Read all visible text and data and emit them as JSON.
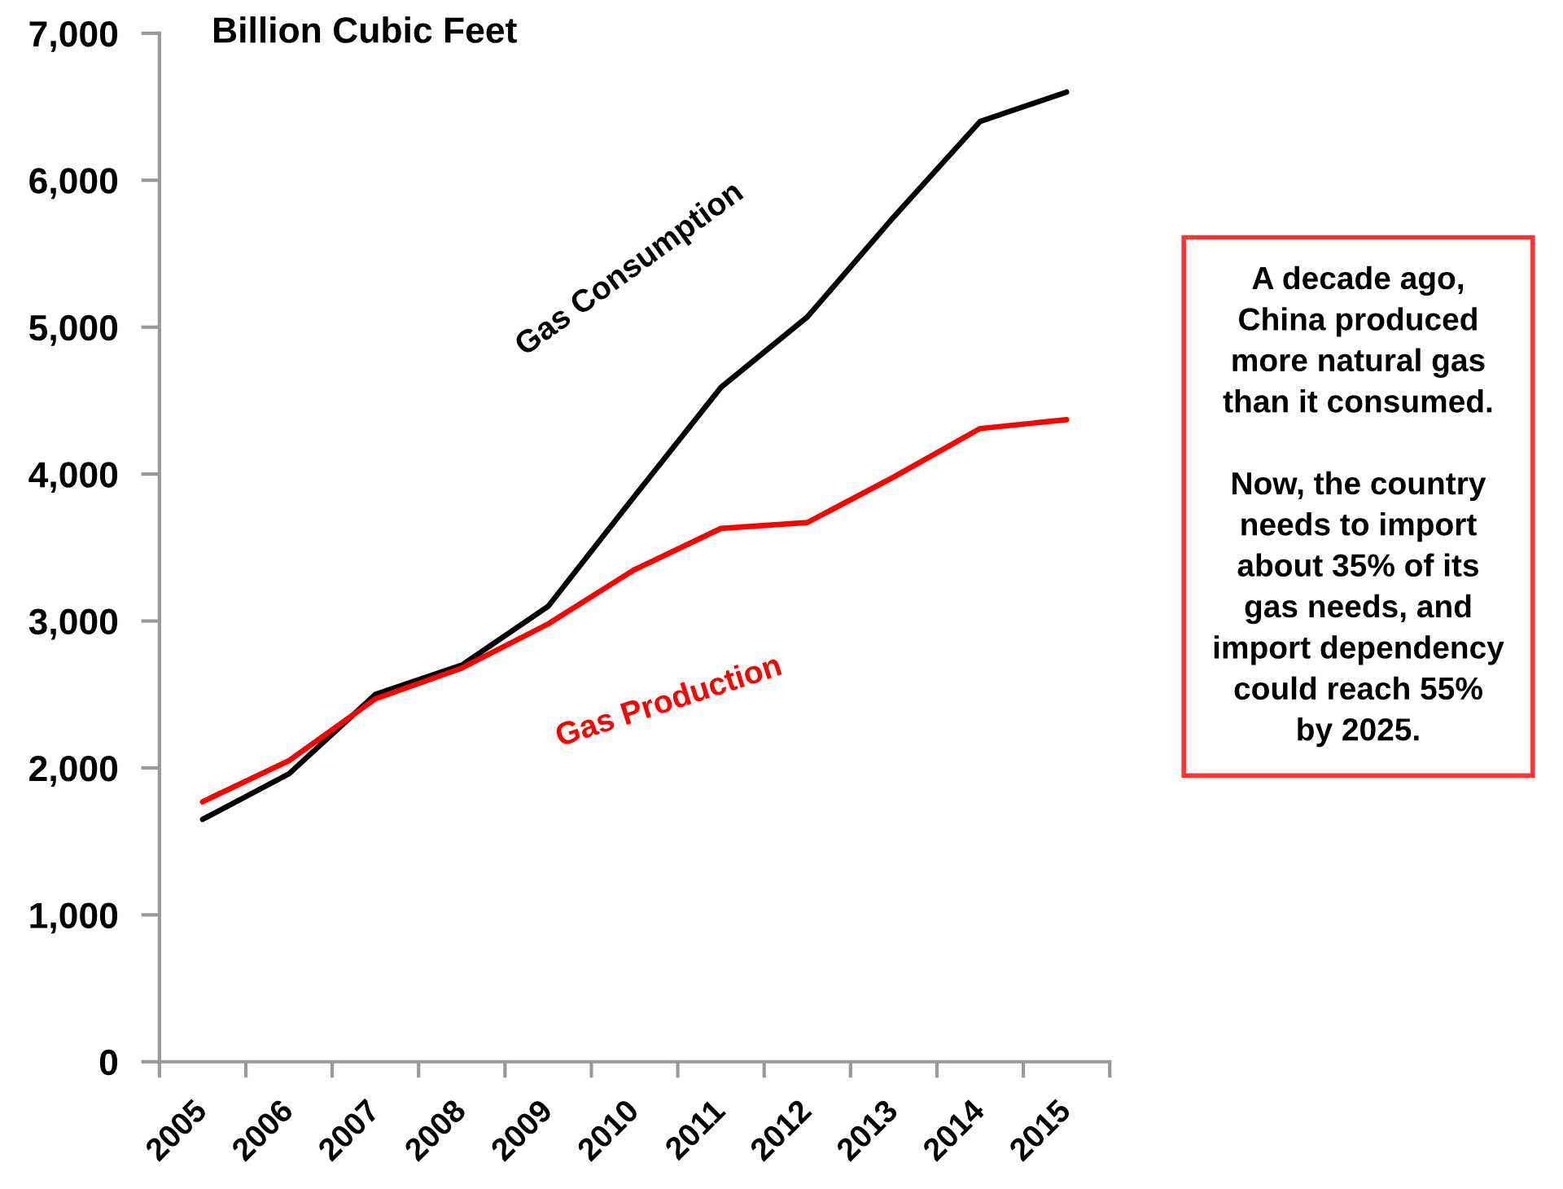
{
  "chart_data": {
    "type": "line",
    "ylabel": "Billion Cubic Feet",
    "categories": [
      "2005",
      "2006",
      "2007",
      "2008",
      "2009",
      "2010",
      "2011",
      "2012",
      "2013",
      "2014",
      "2015"
    ],
    "series": [
      {
        "name": "Gas Consumption",
        "color": "#000000",
        "values": [
          1650,
          1960,
          2500,
          2700,
          3100,
          3850,
          4590,
          5070,
          5750,
          6400,
          6600
        ]
      },
      {
        "name": "Gas Production",
        "color": "#ff0000",
        "values": [
          1770,
          2050,
          2470,
          2680,
          2980,
          3350,
          3630,
          3670,
          3980,
          4310,
          4370
        ]
      }
    ],
    "ylim": [
      0,
      7000
    ],
    "yticks": [
      0,
      {
        "value": 1000,
        "label": "1,000"
      },
      {
        "value": 2000,
        "label": "2,000"
      },
      {
        "value": 3000,
        "label": "3,000"
      },
      {
        "value": 4000,
        "label": "4,000"
      },
      {
        "value": 5000,
        "label": "5,000"
      },
      {
        "value": 6000,
        "label": "6,000"
      },
      {
        "value": 7000,
        "label": "7,000"
      }
    ],
    "grid": false,
    "legend": false,
    "marker": "none",
    "line_style": "solid",
    "annotations": [
      "A decade ago,\nChina produced\nmore natural gas\nthan it consumed.\n\nNow, the country\nneeds to import\nabout 35% of its\ngas needs, and\nimport dependency\ncould reach 55%\nby 2025."
    ]
  }
}
